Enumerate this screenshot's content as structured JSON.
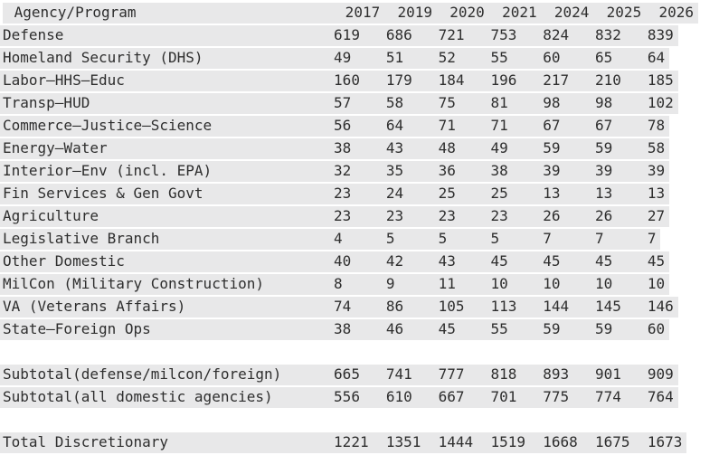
{
  "page": {
    "background": "#ffffff"
  },
  "style": {
    "row_highlight": "#e8e8e9",
    "text_color": "#2e2e2e",
    "gap_color": "#ffffff"
  },
  "chart_data": {
    "type": "table",
    "title": "",
    "columns": [
      "Agency/Program",
      "2017",
      "2019",
      "2020",
      "2021",
      "2024",
      "2025",
      "2026"
    ],
    "layout": {
      "label_col_chars": 38,
      "value_col_chars": 6,
      "label_align": "left",
      "value_align": "left",
      "header_year_align": "center",
      "row_striping": "every-row-highlighted"
    },
    "sections": [
      {
        "name": "agencies",
        "rows": [
          {
            "label": "Defense",
            "values": [
              619,
              686,
              721,
              753,
              824,
              832,
              839
            ]
          },
          {
            "label": "Homeland Security (DHS)",
            "values": [
              49,
              51,
              52,
              55,
              60,
              65,
              64
            ]
          },
          {
            "label": "Labor—HHS—Educ",
            "values": [
              160,
              179,
              184,
              196,
              217,
              210,
              185
            ]
          },
          {
            "label": "Transp—HUD",
            "values": [
              57,
              58,
              75,
              81,
              98,
              98,
              102
            ]
          },
          {
            "label": "Commerce—Justice—Science",
            "values": [
              56,
              64,
              71,
              71,
              67,
              67,
              78
            ]
          },
          {
            "label": "Energy—Water",
            "values": [
              38,
              43,
              48,
              49,
              59,
              59,
              58
            ]
          },
          {
            "label": "Interior—Env (incl. EPA)",
            "values": [
              32,
              35,
              36,
              38,
              39,
              39,
              39
            ]
          },
          {
            "label": "Fin Services & Gen Govt",
            "values": [
              23,
              24,
              25,
              25,
              13,
              13,
              13
            ]
          },
          {
            "label": "Agriculture",
            "values": [
              23,
              23,
              23,
              23,
              26,
              26,
              27
            ]
          },
          {
            "label": "Legislative Branch",
            "values": [
              4,
              5,
              5,
              5,
              7,
              7,
              7
            ]
          },
          {
            "label": "Other Domestic",
            "values": [
              40,
              42,
              43,
              45,
              45,
              45,
              45
            ]
          },
          {
            "label": "MilCon (Military Construction)",
            "values": [
              8,
              9,
              11,
              10,
              10,
              10,
              10
            ]
          },
          {
            "label": "VA (Veterans Affairs)",
            "values": [
              74,
              86,
              105,
              113,
              144,
              145,
              146
            ]
          },
          {
            "label": "State—Foreign Ops",
            "values": [
              38,
              46,
              45,
              55,
              59,
              59,
              60
            ]
          }
        ]
      },
      {
        "name": "subtotals",
        "rows": [
          {
            "label": "Subtotal(defense/milcon/foreign)",
            "values": [
              665,
              741,
              777,
              818,
              893,
              901,
              909
            ]
          },
          {
            "label": "Subtotal(all domestic agencies)",
            "values": [
              556,
              610,
              667,
              701,
              775,
              774,
              764
            ]
          }
        ]
      },
      {
        "name": "total",
        "rows": [
          {
            "label": "Total Discretionary",
            "values": [
              1221,
              1351,
              1444,
              1519,
              1668,
              1675,
              1673
            ]
          }
        ]
      }
    ]
  }
}
